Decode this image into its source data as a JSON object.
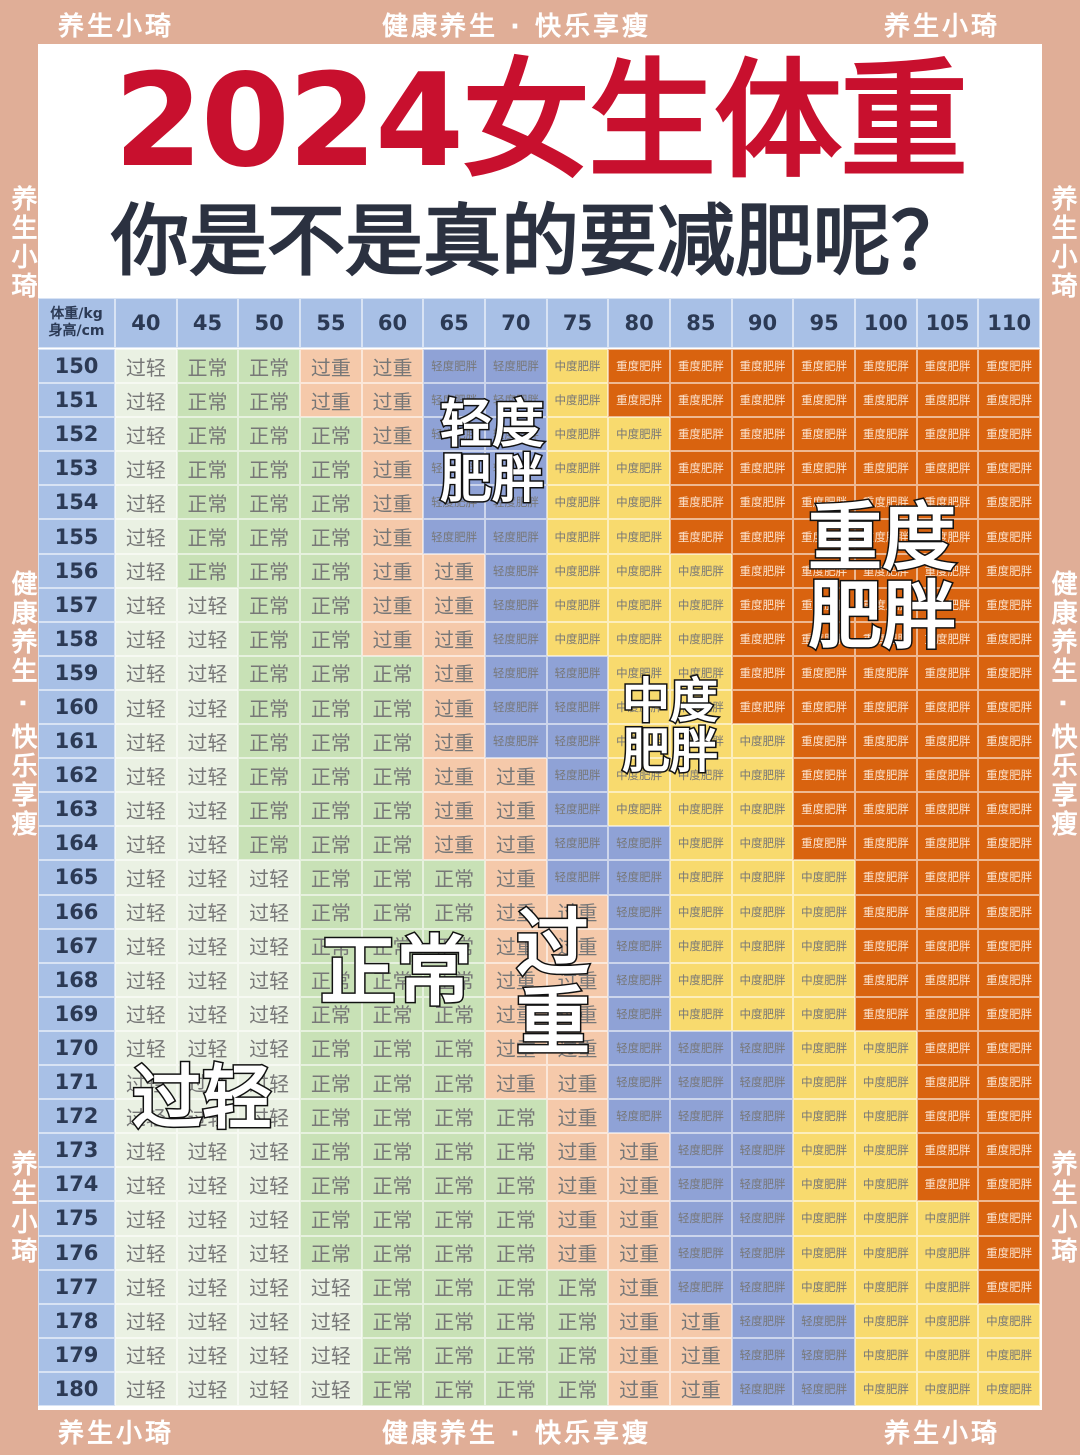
{
  "watermarks": {
    "brand": "养生小琦",
    "slogan": "健康养生 · 快乐享瘦"
  },
  "header": {
    "title": "2024女生体重",
    "subtitle": "你是不是真的要减肥呢？"
  },
  "table": {
    "corner": {
      "weight": "体重/kg",
      "height": "身高/cm"
    },
    "columns": [
      "40",
      "45",
      "50",
      "55",
      "60",
      "65",
      "70",
      "75",
      "80",
      "85",
      "90",
      "95",
      "100",
      "105",
      "110"
    ],
    "row_heads": [
      "150",
      "151",
      "152",
      "153",
      "154",
      "155",
      "156",
      "157",
      "158",
      "159",
      "160",
      "161",
      "162",
      "163",
      "164",
      "165",
      "166",
      "167",
      "168",
      "169",
      "170",
      "171",
      "172",
      "173",
      "174",
      "175",
      "176",
      "177",
      "178",
      "179",
      "180"
    ],
    "cell_colors": {
      "过轻": "#eaf1e3",
      "正常": "#c8e1b6",
      "过重": "#f5c9aa",
      "轻度肥胖": "#8fa2d6",
      "中度肥胖": "#f8da6e",
      "重度肥胖": "#d9630f"
    },
    "rows": [
      [
        "过轻",
        "正常",
        "正常",
        "过重",
        "过重",
        "轻度肥胖",
        "轻度肥胖",
        "中度肥胖",
        "重度肥胖",
        "重度肥胖",
        "重度肥胖",
        "重度肥胖",
        "重度肥胖",
        "重度肥胖",
        "重度肥胖"
      ],
      [
        "过轻",
        "正常",
        "正常",
        "过重",
        "过重",
        "轻度肥胖",
        "轻度肥胖",
        "中度肥胖",
        "重度肥胖",
        "重度肥胖",
        "重度肥胖",
        "重度肥胖",
        "重度肥胖",
        "重度肥胖",
        "重度肥胖"
      ],
      [
        "过轻",
        "正常",
        "正常",
        "正常",
        "过重",
        "轻度肥胖",
        "轻度肥胖",
        "中度肥胖",
        "中度肥胖",
        "重度肥胖",
        "重度肥胖",
        "重度肥胖",
        "重度肥胖",
        "重度肥胖",
        "重度肥胖"
      ],
      [
        "过轻",
        "正常",
        "正常",
        "正常",
        "过重",
        "轻度肥胖",
        "轻度肥胖",
        "中度肥胖",
        "中度肥胖",
        "重度肥胖",
        "重度肥胖",
        "重度肥胖",
        "重度肥胖",
        "重度肥胖",
        "重度肥胖"
      ],
      [
        "过轻",
        "正常",
        "正常",
        "正常",
        "过重",
        "轻度肥胖",
        "轻度肥胖",
        "中度肥胖",
        "中度肥胖",
        "重度肥胖",
        "重度肥胖",
        "重度肥胖",
        "重度肥胖",
        "重度肥胖",
        "重度肥胖"
      ],
      [
        "过轻",
        "正常",
        "正常",
        "正常",
        "过重",
        "轻度肥胖",
        "轻度肥胖",
        "中度肥胖",
        "中度肥胖",
        "重度肥胖",
        "重度肥胖",
        "重度肥胖",
        "重度肥胖",
        "重度肥胖",
        "重度肥胖"
      ],
      [
        "过轻",
        "正常",
        "正常",
        "正常",
        "过重",
        "过重",
        "轻度肥胖",
        "中度肥胖",
        "中度肥胖",
        "中度肥胖",
        "重度肥胖",
        "重度肥胖",
        "重度肥胖",
        "重度肥胖",
        "重度肥胖"
      ],
      [
        "过轻",
        "过轻",
        "正常",
        "正常",
        "过重",
        "过重",
        "轻度肥胖",
        "中度肥胖",
        "中度肥胖",
        "中度肥胖",
        "重度肥胖",
        "重度肥胖",
        "重度肥胖",
        "重度肥胖",
        "重度肥胖"
      ],
      [
        "过轻",
        "过轻",
        "正常",
        "正常",
        "过重",
        "过重",
        "轻度肥胖",
        "中度肥胖",
        "中度肥胖",
        "中度肥胖",
        "重度肥胖",
        "重度肥胖",
        "重度肥胖",
        "重度肥胖",
        "重度肥胖"
      ],
      [
        "过轻",
        "过轻",
        "正常",
        "正常",
        "正常",
        "过重",
        "轻度肥胖",
        "轻度肥胖",
        "中度肥胖",
        "中度肥胖",
        "重度肥胖",
        "重度肥胖",
        "重度肥胖",
        "重度肥胖",
        "重度肥胖"
      ],
      [
        "过轻",
        "过轻",
        "正常",
        "正常",
        "正常",
        "过重",
        "轻度肥胖",
        "轻度肥胖",
        "中度肥胖",
        "中度肥胖",
        "重度肥胖",
        "重度肥胖",
        "重度肥胖",
        "重度肥胖",
        "重度肥胖"
      ],
      [
        "过轻",
        "过轻",
        "正常",
        "正常",
        "正常",
        "过重",
        "轻度肥胖",
        "轻度肥胖",
        "中度肥胖",
        "中度肥胖",
        "中度肥胖",
        "重度肥胖",
        "重度肥胖",
        "重度肥胖",
        "重度肥胖"
      ],
      [
        "过轻",
        "过轻",
        "正常",
        "正常",
        "正常",
        "过重",
        "过重",
        "轻度肥胖",
        "中度肥胖",
        "中度肥胖",
        "中度肥胖",
        "重度肥胖",
        "重度肥胖",
        "重度肥胖",
        "重度肥胖"
      ],
      [
        "过轻",
        "过轻",
        "正常",
        "正常",
        "正常",
        "过重",
        "过重",
        "轻度肥胖",
        "中度肥胖",
        "中度肥胖",
        "中度肥胖",
        "重度肥胖",
        "重度肥胖",
        "重度肥胖",
        "重度肥胖"
      ],
      [
        "过轻",
        "过轻",
        "正常",
        "正常",
        "正常",
        "过重",
        "过重",
        "轻度肥胖",
        "轻度肥胖",
        "中度肥胖",
        "中度肥胖",
        "重度肥胖",
        "重度肥胖",
        "重度肥胖",
        "重度肥胖"
      ],
      [
        "过轻",
        "过轻",
        "过轻",
        "正常",
        "正常",
        "正常",
        "过重",
        "轻度肥胖",
        "轻度肥胖",
        "中度肥胖",
        "中度肥胖",
        "中度肥胖",
        "重度肥胖",
        "重度肥胖",
        "重度肥胖"
      ],
      [
        "过轻",
        "过轻",
        "过轻",
        "正常",
        "正常",
        "正常",
        "过重",
        "过重",
        "轻度肥胖",
        "中度肥胖",
        "中度肥胖",
        "中度肥胖",
        "重度肥胖",
        "重度肥胖",
        "重度肥胖"
      ],
      [
        "过轻",
        "过轻",
        "过轻",
        "正常",
        "正常",
        "正常",
        "过重",
        "过重",
        "轻度肥胖",
        "中度肥胖",
        "中度肥胖",
        "中度肥胖",
        "重度肥胖",
        "重度肥胖",
        "重度肥胖"
      ],
      [
        "过轻",
        "过轻",
        "过轻",
        "正常",
        "正常",
        "正常",
        "过重",
        "过重",
        "轻度肥胖",
        "中度肥胖",
        "中度肥胖",
        "中度肥胖",
        "重度肥胖",
        "重度肥胖",
        "重度肥胖"
      ],
      [
        "过轻",
        "过轻",
        "过轻",
        "正常",
        "正常",
        "正常",
        "过重",
        "过重",
        "轻度肥胖",
        "中度肥胖",
        "中度肥胖",
        "中度肥胖",
        "重度肥胖",
        "重度肥胖",
        "重度肥胖"
      ],
      [
        "过轻",
        "过轻",
        "过轻",
        "正常",
        "正常",
        "正常",
        "过重",
        "过重",
        "轻度肥胖",
        "轻度肥胖",
        "轻度肥胖",
        "中度肥胖",
        "中度肥胖",
        "重度肥胖",
        "重度肥胖"
      ],
      [
        "过轻",
        "过轻",
        "过轻",
        "正常",
        "正常",
        "正常",
        "过重",
        "过重",
        "轻度肥胖",
        "轻度肥胖",
        "轻度肥胖",
        "中度肥胖",
        "中度肥胖",
        "重度肥胖",
        "重度肥胖"
      ],
      [
        "过轻",
        "过轻",
        "过轻",
        "正常",
        "正常",
        "正常",
        "正常",
        "过重",
        "轻度肥胖",
        "轻度肥胖",
        "轻度肥胖",
        "中度肥胖",
        "中度肥胖",
        "重度肥胖",
        "重度肥胖"
      ],
      [
        "过轻",
        "过轻",
        "过轻",
        "正常",
        "正常",
        "正常",
        "正常",
        "过重",
        "过重",
        "轻度肥胖",
        "轻度肥胖",
        "中度肥胖",
        "中度肥胖",
        "重度肥胖",
        "重度肥胖"
      ],
      [
        "过轻",
        "过轻",
        "过轻",
        "正常",
        "正常",
        "正常",
        "正常",
        "过重",
        "过重",
        "轻度肥胖",
        "轻度肥胖",
        "中度肥胖",
        "中度肥胖",
        "重度肥胖",
        "重度肥胖"
      ],
      [
        "过轻",
        "过轻",
        "过轻",
        "正常",
        "正常",
        "正常",
        "正常",
        "过重",
        "过重",
        "轻度肥胖",
        "轻度肥胖",
        "中度肥胖",
        "中度肥胖",
        "中度肥胖",
        "重度肥胖"
      ],
      [
        "过轻",
        "过轻",
        "过轻",
        "正常",
        "正常",
        "正常",
        "正常",
        "过重",
        "过重",
        "轻度肥胖",
        "轻度肥胖",
        "中度肥胖",
        "中度肥胖",
        "中度肥胖",
        "重度肥胖"
      ],
      [
        "过轻",
        "过轻",
        "过轻",
        "过轻",
        "正常",
        "正常",
        "正常",
        "正常",
        "过重",
        "轻度肥胖",
        "轻度肥胖",
        "中度肥胖",
        "中度肥胖",
        "中度肥胖",
        "重度肥胖"
      ],
      [
        "过轻",
        "过轻",
        "过轻",
        "过轻",
        "正常",
        "正常",
        "正常",
        "正常",
        "过重",
        "过重",
        "轻度肥胖",
        "轻度肥胖",
        "中度肥胖",
        "中度肥胖",
        "中度肥胖"
      ],
      [
        "过轻",
        "过轻",
        "过轻",
        "过轻",
        "正常",
        "正常",
        "正常",
        "正常",
        "过重",
        "过重",
        "轻度肥胖",
        "轻度肥胖",
        "中度肥胖",
        "中度肥胖",
        "中度肥胖"
      ],
      [
        "过轻",
        "过轻",
        "过轻",
        "过轻",
        "正常",
        "正常",
        "正常",
        "正常",
        "过重",
        "过重",
        "轻度肥胖",
        "轻度肥胖",
        "中度肥胖",
        "中度肥胖",
        "中度肥胖"
      ]
    ]
  },
  "zone_labels": [
    [
      "轻度",
      "肥胖"
    ],
    [
      "重度",
      "肥胖"
    ],
    [
      "中度",
      "肥胖"
    ],
    [
      "正常"
    ],
    [
      "过",
      "重"
    ],
    [
      "过轻"
    ]
  ]
}
